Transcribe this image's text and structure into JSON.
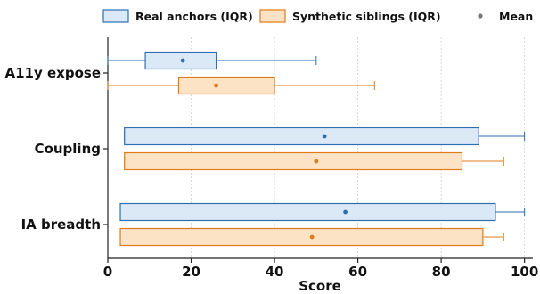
{
  "chart_data": {
    "type": "box",
    "orientation": "horizontal",
    "xlabel": "Score",
    "xlim": [
      0,
      102
    ],
    "xticks": [
      0,
      20,
      40,
      60,
      80,
      100
    ],
    "grid": "vertical dashed",
    "legend_position": "top",
    "categories": [
      "A11y expose",
      "Coupling",
      "IA breadth"
    ],
    "series": [
      {
        "name": "Real anchors (IQR)",
        "color": "#2e6fb0",
        "fill": "#dbe8f6",
        "boxes": [
          {
            "category": "A11y expose",
            "whisker_low": 0,
            "q1": 9,
            "q3": 26,
            "whisker_high": 50,
            "mean": 18
          },
          {
            "category": "Coupling",
            "whisker_low": 4,
            "q1": 4,
            "q3": 89,
            "whisker_high": 100,
            "mean": 52
          },
          {
            "category": "IA breadth",
            "whisker_low": 3,
            "q1": 3,
            "q3": 93,
            "whisker_high": 100,
            "mean": 57
          }
        ]
      },
      {
        "name": "Synthetic siblings (IQR)",
        "color": "#e07b1a",
        "fill": "#fde3c6",
        "boxes": [
          {
            "category": "A11y expose",
            "whisker_low": 0,
            "q1": 17,
            "q3": 40,
            "whisker_high": 64,
            "mean": 26
          },
          {
            "category": "Coupling",
            "whisker_low": 4,
            "q1": 4,
            "q3": 85,
            "whisker_high": 95,
            "mean": 50
          },
          {
            "category": "IA breadth",
            "whisker_low": 3,
            "q1": 3,
            "q3": 90,
            "whisker_high": 95,
            "mean": 49
          }
        ]
      }
    ],
    "legend": {
      "mean_label": "Mean",
      "mean_color": "#777777"
    }
  }
}
